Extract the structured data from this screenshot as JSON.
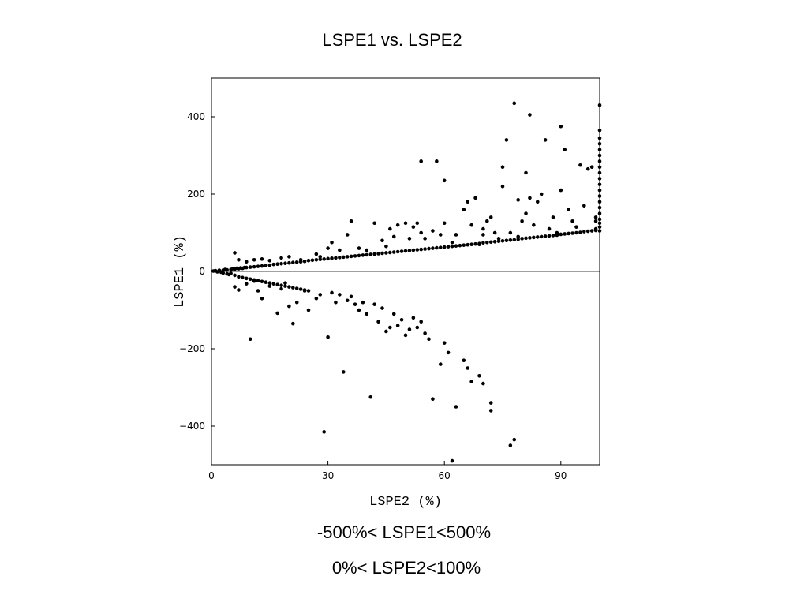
{
  "chart_data": {
    "type": "scatter",
    "title": "LSPE1 vs. LSPE2",
    "xlabel": "LSPE2 (%)",
    "ylabel": "LSPE1 (%)",
    "xlim": [
      0,
      100
    ],
    "ylim": [
      -500,
      500
    ],
    "xticks": [
      0,
      30,
      60,
      90
    ],
    "yticks": [
      -400,
      -200,
      0,
      200,
      400
    ],
    "tick_labels_x": [
      "0",
      "30",
      "60",
      "90"
    ],
    "tick_labels_y": [
      "−400",
      "−200",
      "0",
      "200",
      "400"
    ],
    "zero_line": true,
    "grid": false,
    "annotations": [
      "-500%< LSPE1<500%",
      "0%< LSPE2<100%"
    ],
    "points": [
      [
        0.5,
        1
      ],
      [
        1,
        2
      ],
      [
        1.5,
        -1
      ],
      [
        2,
        3
      ],
      [
        2.5,
        -2
      ],
      [
        3,
        3
      ],
      [
        3,
        -4
      ],
      [
        3.5,
        5
      ],
      [
        4,
        -6
      ],
      [
        4,
        4
      ],
      [
        4.5,
        -8
      ],
      [
        5,
        5
      ],
      [
        5,
        -5
      ],
      [
        5.5,
        7
      ],
      [
        6,
        -10
      ],
      [
        6,
        6
      ],
      [
        6.5,
        8
      ],
      [
        7,
        -14
      ],
      [
        7,
        7
      ],
      [
        7.5,
        9
      ],
      [
        8,
        -16
      ],
      [
        8,
        8
      ],
      [
        8.5,
        10
      ],
      [
        9,
        -18
      ],
      [
        9,
        10
      ],
      [
        10,
        11
      ],
      [
        10,
        -20
      ],
      [
        11,
        12
      ],
      [
        11,
        -22
      ],
      [
        12,
        13
      ],
      [
        12,
        -24
      ],
      [
        13,
        14
      ],
      [
        13,
        -26
      ],
      [
        14,
        15
      ],
      [
        14,
        -28
      ],
      [
        15,
        16
      ],
      [
        15,
        -30
      ],
      [
        16,
        18
      ],
      [
        16,
        -32
      ],
      [
        17,
        19
      ],
      [
        17,
        -34
      ],
      [
        18,
        20
      ],
      [
        18,
        -36
      ],
      [
        19,
        21
      ],
      [
        19,
        -38
      ],
      [
        20,
        22
      ],
      [
        20,
        -40
      ],
      [
        21,
        23
      ],
      [
        21,
        -42
      ],
      [
        22,
        24
      ],
      [
        22,
        -44
      ],
      [
        23,
        25
      ],
      [
        23,
        -46
      ],
      [
        24,
        26
      ],
      [
        24,
        -48
      ],
      [
        25,
        28
      ],
      [
        25,
        -50
      ],
      [
        26,
        29
      ],
      [
        27,
        30
      ],
      [
        28,
        31
      ],
      [
        29,
        32
      ],
      [
        30,
        33
      ],
      [
        31,
        34
      ],
      [
        32,
        35
      ],
      [
        33,
        36
      ],
      [
        34,
        37
      ],
      [
        35,
        38
      ],
      [
        36,
        39
      ],
      [
        37,
        40
      ],
      [
        38,
        41
      ],
      [
        39,
        42
      ],
      [
        40,
        43
      ],
      [
        41,
        44
      ],
      [
        42,
        45
      ],
      [
        43,
        46
      ],
      [
        44,
        47
      ],
      [
        45,
        48
      ],
      [
        46,
        49
      ],
      [
        47,
        50
      ],
      [
        48,
        51
      ],
      [
        49,
        52
      ],
      [
        50,
        53
      ],
      [
        51,
        54
      ],
      [
        52,
        55
      ],
      [
        53,
        56
      ],
      [
        54,
        57
      ],
      [
        55,
        58
      ],
      [
        56,
        59
      ],
      [
        57,
        60
      ],
      [
        58,
        61
      ],
      [
        59,
        62
      ],
      [
        60,
        63
      ],
      [
        61,
        64
      ],
      [
        62,
        65
      ],
      [
        63,
        66
      ],
      [
        64,
        67
      ],
      [
        65,
        68
      ],
      [
        66,
        69
      ],
      [
        67,
        70
      ],
      [
        68,
        71
      ],
      [
        69,
        72
      ],
      [
        70,
        74
      ],
      [
        71,
        75
      ],
      [
        72,
        76
      ],
      [
        73,
        77
      ],
      [
        74,
        78
      ],
      [
        75,
        79
      ],
      [
        76,
        80
      ],
      [
        77,
        81
      ],
      [
        78,
        82
      ],
      [
        79,
        83
      ],
      [
        80,
        85
      ],
      [
        81,
        86
      ],
      [
        82,
        87
      ],
      [
        83,
        88
      ],
      [
        84,
        89
      ],
      [
        85,
        90
      ],
      [
        86,
        91
      ],
      [
        87,
        92
      ],
      [
        88,
        93
      ],
      [
        89,
        94
      ],
      [
        90,
        96
      ],
      [
        91,
        97
      ],
      [
        92,
        98
      ],
      [
        93,
        99
      ],
      [
        94,
        100
      ],
      [
        95,
        101
      ],
      [
        96,
        103
      ],
      [
        97,
        104
      ],
      [
        98,
        105
      ],
      [
        99,
        106
      ],
      [
        6,
        48
      ],
      [
        7,
        30
      ],
      [
        9,
        25
      ],
      [
        11,
        30
      ],
      [
        13,
        32
      ],
      [
        15,
        28
      ],
      [
        18,
        35
      ],
      [
        20,
        38
      ],
      [
        23,
        30
      ],
      [
        27,
        45
      ],
      [
        28,
        38
      ],
      [
        30,
        60
      ],
      [
        31,
        75
      ],
      [
        33,
        55
      ],
      [
        35,
        95
      ],
      [
        36,
        130
      ],
      [
        38,
        60
      ],
      [
        40,
        55
      ],
      [
        42,
        125
      ],
      [
        44,
        80
      ],
      [
        45,
        65
      ],
      [
        46,
        110
      ],
      [
        47,
        90
      ],
      [
        48,
        120
      ],
      [
        50,
        125
      ],
      [
        51,
        85
      ],
      [
        52,
        115
      ],
      [
        53,
        125
      ],
      [
        54,
        100
      ],
      [
        54,
        285
      ],
      [
        55,
        85
      ],
      [
        57,
        105
      ],
      [
        58,
        285
      ],
      [
        59,
        95
      ],
      [
        60,
        125
      ],
      [
        60,
        235
      ],
      [
        62,
        75
      ],
      [
        63,
        95
      ],
      [
        65,
        160
      ],
      [
        66,
        180
      ],
      [
        67,
        120
      ],
      [
        68,
        190
      ],
      [
        69,
        70
      ],
      [
        70,
        110
      ],
      [
        70,
        95
      ],
      [
        71,
        130
      ],
      [
        72,
        140
      ],
      [
        73,
        100
      ],
      [
        74,
        85
      ],
      [
        75,
        220
      ],
      [
        75,
        270
      ],
      [
        76,
        340
      ],
      [
        77,
        100
      ],
      [
        78,
        435
      ],
      [
        79,
        90
      ],
      [
        79,
        185
      ],
      [
        80,
        130
      ],
      [
        81,
        150
      ],
      [
        81,
        255
      ],
      [
        82,
        405
      ],
      [
        82,
        190
      ],
      [
        83,
        120
      ],
      [
        84,
        180
      ],
      [
        85,
        200
      ],
      [
        86,
        340
      ],
      [
        87,
        110
      ],
      [
        88,
        140
      ],
      [
        89,
        100
      ],
      [
        90,
        375
      ],
      [
        90,
        210
      ],
      [
        91,
        315
      ],
      [
        92,
        160
      ],
      [
        93,
        130
      ],
      [
        94,
        115
      ],
      [
        95,
        275
      ],
      [
        96,
        170
      ],
      [
        97,
        265
      ],
      [
        98,
        270
      ],
      [
        99,
        110
      ],
      [
        99,
        130
      ],
      [
        99,
        140
      ],
      [
        100,
        105
      ],
      [
        100,
        115
      ],
      [
        100,
        125
      ],
      [
        100,
        135
      ],
      [
        100,
        150
      ],
      [
        100,
        165
      ],
      [
        100,
        180
      ],
      [
        100,
        195
      ],
      [
        100,
        210
      ],
      [
        100,
        225
      ],
      [
        100,
        240
      ],
      [
        100,
        255
      ],
      [
        100,
        270
      ],
      [
        100,
        285
      ],
      [
        100,
        300
      ],
      [
        100,
        315
      ],
      [
        100,
        330
      ],
      [
        100,
        345
      ],
      [
        100,
        365
      ],
      [
        100,
        430
      ],
      [
        6,
        -40
      ],
      [
        7,
        -48
      ],
      [
        9,
        -32
      ],
      [
        10,
        -175
      ],
      [
        11,
        -25
      ],
      [
        12,
        -50
      ],
      [
        13,
        -70
      ],
      [
        15,
        -38
      ],
      [
        17,
        -108
      ],
      [
        18,
        -45
      ],
      [
        19,
        -30
      ],
      [
        20,
        -90
      ],
      [
        21,
        -135
      ],
      [
        22,
        -80
      ],
      [
        24,
        -50
      ],
      [
        25,
        -100
      ],
      [
        27,
        -70
      ],
      [
        28,
        -60
      ],
      [
        29,
        -415
      ],
      [
        30,
        -170
      ],
      [
        31,
        -55
      ],
      [
        32,
        -80
      ],
      [
        33,
        -60
      ],
      [
        34,
        -260
      ],
      [
        35,
        -75
      ],
      [
        36,
        -65
      ],
      [
        37,
        -85
      ],
      [
        38,
        -100
      ],
      [
        39,
        -80
      ],
      [
        40,
        -110
      ],
      [
        41,
        -325
      ],
      [
        42,
        -85
      ],
      [
        43,
        -130
      ],
      [
        44,
        -95
      ],
      [
        45,
        -155
      ],
      [
        46,
        -145
      ],
      [
        47,
        -110
      ],
      [
        48,
        -140
      ],
      [
        49,
        -125
      ],
      [
        50,
        -165
      ],
      [
        51,
        -150
      ],
      [
        52,
        -120
      ],
      [
        53,
        -145
      ],
      [
        54,
        -130
      ],
      [
        55,
        -160
      ],
      [
        56,
        -175
      ],
      [
        57,
        -330
      ],
      [
        59,
        -240
      ],
      [
        60,
        -185
      ],
      [
        61,
        -210
      ],
      [
        62,
        -490
      ],
      [
        63,
        -350
      ],
      [
        65,
        -230
      ],
      [
        66,
        -250
      ],
      [
        67,
        -285
      ],
      [
        69,
        -270
      ],
      [
        70,
        -290
      ],
      [
        72,
        -340
      ],
      [
        72,
        -360
      ],
      [
        77,
        -450
      ],
      [
        78,
        -435
      ]
    ]
  }
}
